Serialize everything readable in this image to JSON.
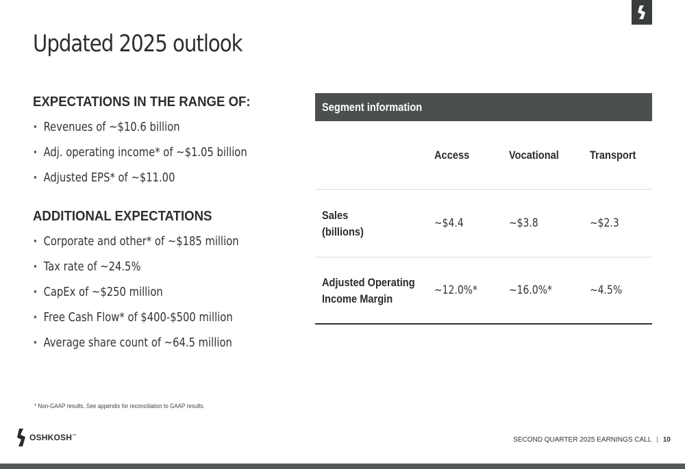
{
  "slide": {
    "title": "Updated 2025 outlook"
  },
  "expectations": {
    "heading": "EXPECTATIONS IN THE RANGE OF:",
    "items": [
      "Revenues of ~$10.6 billion",
      "Adj. operating income* of ~$1.05 billion",
      "Adjusted EPS* of ~$11.00"
    ]
  },
  "additional": {
    "heading": "ADDITIONAL EXPECTATIONS",
    "items": [
      "Corporate and other* of ~$185 million",
      "Tax rate of ~24.5%",
      "CapEx of ~$250 million",
      "Free Cash Flow* of $400-$500 million",
      "Average share count of ~64.5 million"
    ]
  },
  "segment_table": {
    "title": "Segment information",
    "columns": [
      "Access",
      "Vocational",
      "Transport"
    ],
    "rows": [
      {
        "label_line1": "Sales",
        "label_line2": "(billions)",
        "values": [
          "~$4.4",
          "~$3.8",
          "~$2.3"
        ]
      },
      {
        "label_line1": "Adjusted Operating",
        "label_line2": "Income Margin",
        "values": [
          "~12.0%*",
          "~16.0%*",
          "~4.5%"
        ]
      }
    ]
  },
  "footnote": "* Non-GAAP results. See appendix for reconciliation to GAAP results.",
  "footer": {
    "brand": "OSHKOSH",
    "trademark": "™",
    "call_label": "SECOND QUARTER 2025 EARNINGS CALL",
    "separator": "|",
    "page_number": "10"
  },
  "icons": {
    "corner": "oshkosh-mark-icon",
    "brand": "oshkosh-logo-icon",
    "bullet": "bullet-dot-icon"
  },
  "colors": {
    "header_bar": "#4a4f50",
    "corner_badge": "#3a3d3e",
    "bottom_bar": "#55595a"
  }
}
